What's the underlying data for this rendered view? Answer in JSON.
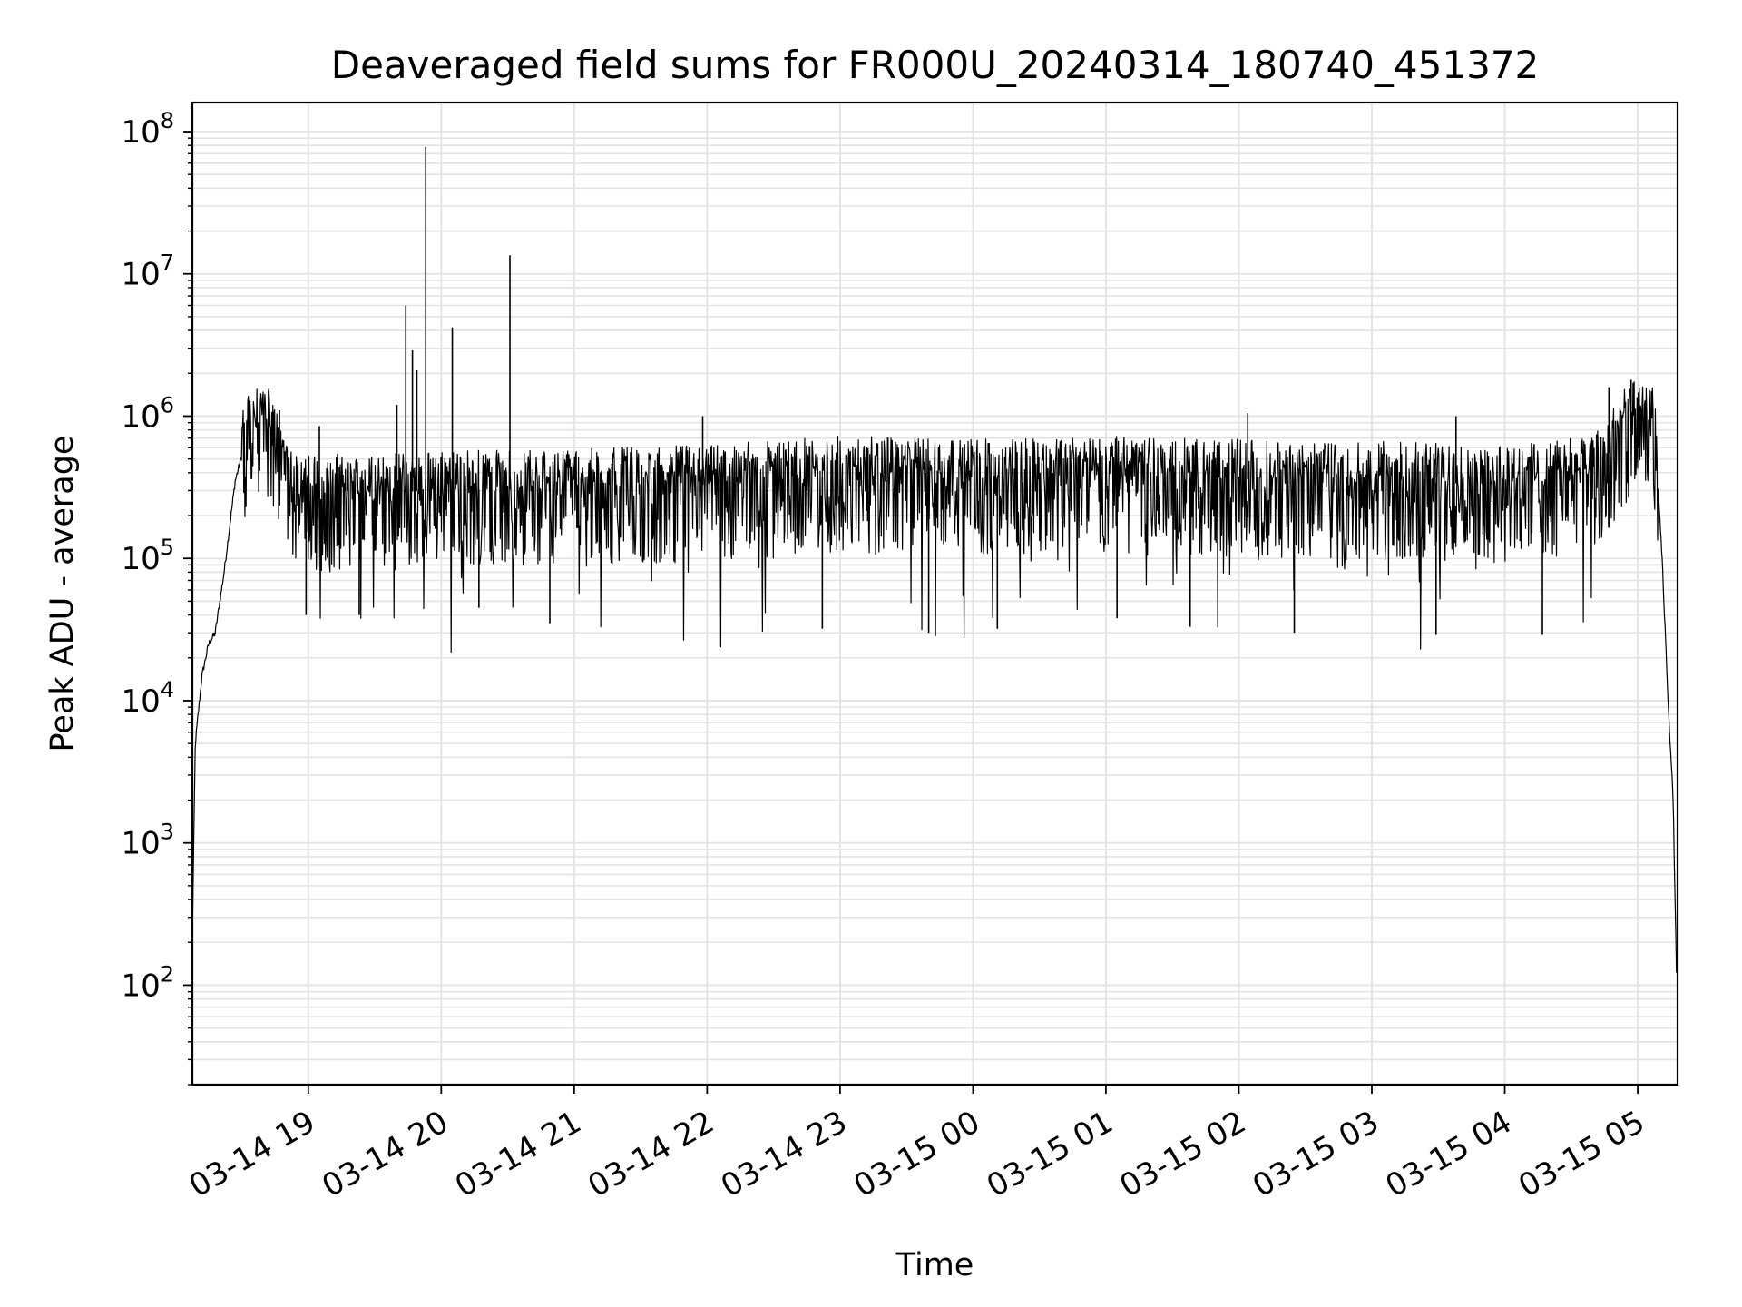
{
  "chart_data": {
    "type": "line",
    "title": "Deaveraged field sums for FR000U_20240314_180740_451372",
    "xlabel": "Time",
    "ylabel": "Peak ADU - average",
    "xlim": [
      "2024-03-14 18:07:40",
      "2024-03-15 05:18:00"
    ],
    "ylim": [
      20,
      160000000
    ],
    "yscale": "log",
    "grid": true,
    "x_ticks": [
      {
        "t": "2024-03-14 19:00",
        "label": "03-14 19"
      },
      {
        "t": "2024-03-14 20:00",
        "label": "03-14 20"
      },
      {
        "t": "2024-03-14 21:00",
        "label": "03-14 21"
      },
      {
        "t": "2024-03-14 22:00",
        "label": "03-14 22"
      },
      {
        "t": "2024-03-14 23:00",
        "label": "03-14 23"
      },
      {
        "t": "2024-03-15 00:00",
        "label": "03-15 00"
      },
      {
        "t": "2024-03-15 01:00",
        "label": "03-15 01"
      },
      {
        "t": "2024-03-15 02:00",
        "label": "03-15 02"
      },
      {
        "t": "2024-03-15 03:00",
        "label": "03-15 03"
      },
      {
        "t": "2024-03-15 04:00",
        "label": "03-15 04"
      },
      {
        "t": "2024-03-15 05:00",
        "label": "03-15 05"
      }
    ],
    "y_ticks": [
      {
        "value": 100,
        "base": "10",
        "exp": "2"
      },
      {
        "value": 1000,
        "base": "10",
        "exp": "3"
      },
      {
        "value": 10000,
        "base": "10",
        "exp": "4"
      },
      {
        "value": 100000,
        "base": "10",
        "exp": "5"
      },
      {
        "value": 1000000,
        "base": "10",
        "exp": "6"
      },
      {
        "value": 10000000,
        "base": "10",
        "exp": "7"
      },
      {
        "value": 100000000,
        "base": "10",
        "exp": "8"
      }
    ],
    "series": [
      {
        "color": "#000000",
        "baseline_points": [
          {
            "t": "2024-03-14 18:07:40",
            "y": 200
          },
          {
            "t": "2024-03-14 18:08:00",
            "y": 500
          },
          {
            "t": "2024-03-14 18:09:00",
            "y": 5000
          },
          {
            "t": "2024-03-14 18:12:00",
            "y": 15000
          },
          {
            "t": "2024-03-14 18:15:00",
            "y": 25000
          },
          {
            "t": "2024-03-14 18:18:00",
            "y": 30000
          },
          {
            "t": "2024-03-14 18:22:00",
            "y": 80000
          },
          {
            "t": "2024-03-14 18:27:00",
            "y": 350000
          },
          {
            "t": "2024-03-14 18:33:00",
            "y": 800000
          },
          {
            "t": "2024-03-14 18:38:00",
            "y": 1050000
          },
          {
            "t": "2024-03-14 18:42:00",
            "y": 900000
          },
          {
            "t": "2024-03-14 18:48:00",
            "y": 450000
          },
          {
            "t": "2024-03-14 18:55:00",
            "y": 280000
          },
          {
            "t": "2024-03-14 20:00:00",
            "y": 300000
          },
          {
            "t": "2024-03-14 21:00:00",
            "y": 310000
          },
          {
            "t": "2024-03-14 22:00:00",
            "y": 330000
          },
          {
            "t": "2024-03-14 23:00:00",
            "y": 380000
          },
          {
            "t": "2024-03-15 00:00:00",
            "y": 370000
          },
          {
            "t": "2024-03-15 01:00:00",
            "y": 380000
          },
          {
            "t": "2024-03-15 02:00:00",
            "y": 360000
          },
          {
            "t": "2024-03-15 03:00:00",
            "y": 350000
          },
          {
            "t": "2024-03-15 04:00:00",
            "y": 330000
          },
          {
            "t": "2024-03-15 04:40:00",
            "y": 380000
          },
          {
            "t": "2024-03-15 04:50:00",
            "y": 650000
          },
          {
            "t": "2024-03-15 04:58:00",
            "y": 1000000
          },
          {
            "t": "2024-03-15 05:05:00",
            "y": 1050000
          },
          {
            "t": "2024-03-15 05:08:00",
            "y": 700000
          },
          {
            "t": "2024-03-15 05:11:00",
            "y": 100000
          },
          {
            "t": "2024-03-15 05:14:00",
            "y": 8000
          },
          {
            "t": "2024-03-15 05:16:00",
            "y": 2000
          },
          {
            "t": "2024-03-15 05:17:30",
            "y": 120
          }
        ],
        "spikes": [
          {
            "t": "2024-03-14 19:44:00",
            "y": 6000000
          },
          {
            "t": "2024-03-14 19:47:00",
            "y": 2900000
          },
          {
            "t": "2024-03-14 19:49:00",
            "y": 2100000
          },
          {
            "t": "2024-03-14 19:53:00",
            "y": 78000000
          },
          {
            "t": "2024-03-14 20:05:00",
            "y": 4200000
          },
          {
            "t": "2024-03-14 20:31:00",
            "y": 13500000
          },
          {
            "t": "2024-03-14 19:40:00",
            "y": 1200000
          },
          {
            "t": "2024-03-14 18:47:00",
            "y": 1100000
          },
          {
            "t": "2024-03-14 19:05:00",
            "y": 850000
          },
          {
            "t": "2024-03-14 21:58:00",
            "y": 1000000
          },
          {
            "t": "2024-03-15 02:04:00",
            "y": 1050000
          },
          {
            "t": "2024-03-15 03:38:00",
            "y": 1000000
          },
          {
            "t": "2024-03-15 04:47:00",
            "y": 1600000
          },
          {
            "t": "2024-03-15 04:57:00",
            "y": 1800000
          }
        ],
        "dips": [
          {
            "t": "2024-03-14 18:59:00",
            "y": 40000
          },
          {
            "t": "2024-03-14 19:23:00",
            "y": 40000
          },
          {
            "t": "2024-03-14 20:17:00",
            "y": 45000
          },
          {
            "t": "2024-03-14 20:49:00",
            "y": 35000
          },
          {
            "t": "2024-03-14 22:52:00",
            "y": 32000
          },
          {
            "t": "2024-03-14 23:40:00",
            "y": 30000
          },
          {
            "t": "2024-03-15 00:11:00",
            "y": 32000
          },
          {
            "t": "2024-03-15 01:05:00",
            "y": 38000
          },
          {
            "t": "2024-03-15 01:38:00",
            "y": 33000
          },
          {
            "t": "2024-03-15 02:25:00",
            "y": 30000
          },
          {
            "t": "2024-03-15 03:29:00",
            "y": 29000
          },
          {
            "t": "2024-03-15 04:17:00",
            "y": 29000
          }
        ]
      }
    ]
  }
}
